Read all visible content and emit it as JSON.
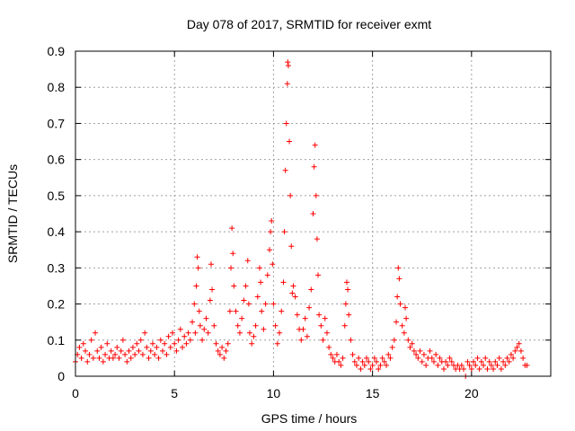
{
  "chart_data": {
    "type": "scatter",
    "title": "Day 078 of 2017, SRMTID for receiver exmt",
    "xlabel": "GPS time / hours",
    "ylabel": "SRMTID / TECUs",
    "xlim": [
      0,
      24
    ],
    "ylim": [
      0,
      0.9
    ],
    "xticks": [
      0,
      5,
      10,
      15,
      20
    ],
    "xtick_labels": [
      "0",
      "5",
      "10",
      "15",
      "20"
    ],
    "yticks": [
      0,
      0.1,
      0.2,
      0.3,
      0.4,
      0.5,
      0.6,
      0.7,
      0.8,
      0.9
    ],
    "ytick_labels": [
      "0",
      "0.1",
      "0.2",
      "0.3",
      "0.4",
      "0.5",
      "0.6",
      "0.7",
      "0.8",
      "0.9"
    ],
    "grid": true,
    "marker": "+",
    "series_color": "#ff0000",
    "series": [
      {
        "name": "SRMTID",
        "points": [
          [
            0.0,
            0.04
          ],
          [
            0.1,
            0.06
          ],
          [
            0.2,
            0.08
          ],
          [
            0.3,
            0.05
          ],
          [
            0.4,
            0.09
          ],
          [
            0.5,
            0.07
          ],
          [
            0.6,
            0.04
          ],
          [
            0.7,
            0.06
          ],
          [
            0.8,
            0.1
          ],
          [
            0.9,
            0.05
          ],
          [
            1.0,
            0.12
          ],
          [
            1.1,
            0.07
          ],
          [
            1.2,
            0.05
          ],
          [
            1.3,
            0.08
          ],
          [
            1.4,
            0.04
          ],
          [
            1.5,
            0.06
          ],
          [
            1.6,
            0.09
          ],
          [
            1.7,
            0.05
          ],
          [
            1.8,
            0.07
          ],
          [
            1.9,
            0.05
          ],
          [
            2.0,
            0.06
          ],
          [
            2.1,
            0.08
          ],
          [
            2.2,
            0.05
          ],
          [
            2.3,
            0.07
          ],
          [
            2.4,
            0.1
          ],
          [
            2.5,
            0.06
          ],
          [
            2.6,
            0.04
          ],
          [
            2.7,
            0.07
          ],
          [
            2.8,
            0.05
          ],
          [
            2.9,
            0.08
          ],
          [
            3.0,
            0.06
          ],
          [
            3.1,
            0.09
          ],
          [
            3.2,
            0.07
          ],
          [
            3.3,
            0.1
          ],
          [
            3.4,
            0.06
          ],
          [
            3.5,
            0.12
          ],
          [
            3.6,
            0.08
          ],
          [
            3.7,
            0.05
          ],
          [
            3.8,
            0.07
          ],
          [
            3.9,
            0.09
          ],
          [
            4.0,
            0.06
          ],
          [
            4.1,
            0.08
          ],
          [
            4.2,
            0.05
          ],
          [
            4.3,
            0.1
          ],
          [
            4.4,
            0.07
          ],
          [
            4.5,
            0.09
          ],
          [
            4.6,
            0.06
          ],
          [
            4.7,
            0.11
          ],
          [
            4.8,
            0.08
          ],
          [
            4.9,
            0.12
          ],
          [
            5.0,
            0.09
          ],
          [
            5.1,
            0.07
          ],
          [
            5.2,
            0.1
          ],
          [
            5.3,
            0.13
          ],
          [
            5.4,
            0.08
          ],
          [
            5.5,
            0.11
          ],
          [
            5.6,
            0.09
          ],
          [
            5.7,
            0.12
          ],
          [
            5.8,
            0.1
          ],
          [
            5.9,
            0.15
          ],
          [
            6.0,
            0.2
          ],
          [
            6.05,
            0.12
          ],
          [
            6.1,
            0.25
          ],
          [
            6.15,
            0.33
          ],
          [
            6.2,
            0.3
          ],
          [
            6.25,
            0.18
          ],
          [
            6.3,
            0.14
          ],
          [
            6.4,
            0.1
          ],
          [
            6.5,
            0.13
          ],
          [
            6.6,
            0.16
          ],
          [
            6.7,
            0.12
          ],
          [
            6.8,
            0.21
          ],
          [
            6.85,
            0.31
          ],
          [
            6.9,
            0.24
          ],
          [
            7.0,
            0.14
          ],
          [
            7.1,
            0.09
          ],
          [
            7.2,
            0.07
          ],
          [
            7.3,
            0.06
          ],
          [
            7.4,
            0.08
          ],
          [
            7.5,
            0.05
          ],
          [
            7.6,
            0.07
          ],
          [
            7.7,
            0.09
          ],
          [
            7.8,
            0.18
          ],
          [
            7.85,
            0.3
          ],
          [
            7.9,
            0.41
          ],
          [
            7.95,
            0.34
          ],
          [
            8.0,
            0.25
          ],
          [
            8.1,
            0.18
          ],
          [
            8.2,
            0.14
          ],
          [
            8.3,
            0.12
          ],
          [
            8.4,
            0.16
          ],
          [
            8.5,
            0.21
          ],
          [
            8.6,
            0.25
          ],
          [
            8.7,
            0.32
          ],
          [
            8.75,
            0.2
          ],
          [
            8.8,
            0.12
          ],
          [
            8.9,
            0.09
          ],
          [
            9.0,
            0.11
          ],
          [
            9.1,
            0.14
          ],
          [
            9.2,
            0.22
          ],
          [
            9.3,
            0.3
          ],
          [
            9.35,
            0.26
          ],
          [
            9.4,
            0.18
          ],
          [
            9.5,
            0.13
          ],
          [
            9.6,
            0.2
          ],
          [
            9.7,
            0.28
          ],
          [
            9.8,
            0.35
          ],
          [
            9.85,
            0.4
          ],
          [
            9.9,
            0.43
          ],
          [
            9.95,
            0.31
          ],
          [
            10.0,
            0.2
          ],
          [
            10.1,
            0.14
          ],
          [
            10.2,
            0.09
          ],
          [
            10.3,
            0.12
          ],
          [
            10.4,
            0.18
          ],
          [
            10.5,
            0.26
          ],
          [
            10.55,
            0.4
          ],
          [
            10.6,
            0.57
          ],
          [
            10.65,
            0.7
          ],
          [
            10.7,
            0.81
          ],
          [
            10.72,
            0.87
          ],
          [
            10.75,
            0.86
          ],
          [
            10.8,
            0.65
          ],
          [
            10.85,
            0.5
          ],
          [
            10.9,
            0.36
          ],
          [
            10.95,
            0.23
          ],
          [
            11.0,
            0.25
          ],
          [
            11.1,
            0.22
          ],
          [
            11.2,
            0.17
          ],
          [
            11.3,
            0.13
          ],
          [
            11.4,
            0.1
          ],
          [
            11.5,
            0.13
          ],
          [
            11.6,
            0.16
          ],
          [
            11.7,
            0.11
          ],
          [
            11.8,
            0.19
          ],
          [
            11.9,
            0.24
          ],
          [
            12.0,
            0.45
          ],
          [
            12.05,
            0.58
          ],
          [
            12.1,
            0.64
          ],
          [
            12.15,
            0.5
          ],
          [
            12.2,
            0.38
          ],
          [
            12.25,
            0.28
          ],
          [
            12.3,
            0.17
          ],
          [
            12.4,
            0.14
          ],
          [
            12.5,
            0.1
          ],
          [
            12.6,
            0.16
          ],
          [
            12.7,
            0.12
          ],
          [
            12.8,
            0.08
          ],
          [
            12.9,
            0.06
          ],
          [
            13.0,
            0.05
          ],
          [
            13.1,
            0.04
          ],
          [
            13.2,
            0.06
          ],
          [
            13.3,
            0.04
          ],
          [
            13.4,
            0.03
          ],
          [
            13.5,
            0.05
          ],
          [
            13.6,
            0.14
          ],
          [
            13.65,
            0.2
          ],
          [
            13.7,
            0.26
          ],
          [
            13.75,
            0.24
          ],
          [
            13.8,
            0.17
          ],
          [
            13.9,
            0.1
          ],
          [
            14.0,
            0.06
          ],
          [
            14.1,
            0.04
          ],
          [
            14.2,
            0.03
          ],
          [
            14.3,
            0.05
          ],
          [
            14.4,
            0.02
          ],
          [
            14.5,
            0.04
          ],
          [
            14.6,
            0.03
          ],
          [
            14.7,
            0.05
          ],
          [
            14.8,
            0.04
          ],
          [
            14.9,
            0.02
          ],
          [
            15.0,
            0.03
          ],
          [
            15.1,
            0.05
          ],
          [
            15.2,
            0.04
          ],
          [
            15.3,
            0.02
          ],
          [
            15.4,
            0.03
          ],
          [
            15.5,
            0.05
          ],
          [
            15.6,
            0.04
          ],
          [
            15.7,
            0.03
          ],
          [
            15.8,
            0.06
          ],
          [
            15.9,
            0.05
          ],
          [
            16.0,
            0.08
          ],
          [
            16.1,
            0.1
          ],
          [
            16.2,
            0.15
          ],
          [
            16.25,
            0.22
          ],
          [
            16.3,
            0.3
          ],
          [
            16.35,
            0.27
          ],
          [
            16.4,
            0.2
          ],
          [
            16.5,
            0.14
          ],
          [
            16.6,
            0.12
          ],
          [
            16.65,
            0.19
          ],
          [
            16.7,
            0.16
          ],
          [
            16.8,
            0.1
          ],
          [
            16.9,
            0.08
          ],
          [
            17.0,
            0.09
          ],
          [
            17.1,
            0.07
          ],
          [
            17.2,
            0.06
          ],
          [
            17.3,
            0.05
          ],
          [
            17.4,
            0.07
          ],
          [
            17.5,
            0.04
          ],
          [
            17.6,
            0.06
          ],
          [
            17.7,
            0.03
          ],
          [
            17.8,
            0.05
          ],
          [
            17.9,
            0.07
          ],
          [
            18.0,
            0.05
          ],
          [
            18.1,
            0.04
          ],
          [
            18.2,
            0.06
          ],
          [
            18.3,
            0.03
          ],
          [
            18.4,
            0.05
          ],
          [
            18.5,
            0.04
          ],
          [
            18.6,
            0.02
          ],
          [
            18.7,
            0.04
          ],
          [
            18.8,
            0.03
          ],
          [
            18.9,
            0.05
          ],
          [
            19.0,
            0.04
          ],
          [
            19.1,
            0.03
          ],
          [
            19.2,
            0.02
          ],
          [
            19.3,
            0.03
          ],
          [
            19.4,
            0.02
          ],
          [
            19.5,
            0.03
          ],
          [
            19.6,
            0.02
          ],
          [
            19.7,
            0.0
          ],
          [
            19.8,
            0.04
          ],
          [
            19.9,
            0.03
          ],
          [
            20.0,
            0.02
          ],
          [
            20.1,
            0.04
          ],
          [
            20.2,
            0.03
          ],
          [
            20.3,
            0.05
          ],
          [
            20.4,
            0.02
          ],
          [
            20.5,
            0.04
          ],
          [
            20.6,
            0.03
          ],
          [
            20.7,
            0.05
          ],
          [
            20.8,
            0.02
          ],
          [
            20.9,
            0.04
          ],
          [
            21.0,
            0.03
          ],
          [
            21.1,
            0.02
          ],
          [
            21.2,
            0.04
          ],
          [
            21.3,
            0.03
          ],
          [
            21.4,
            0.05
          ],
          [
            21.5,
            0.02
          ],
          [
            21.6,
            0.04
          ],
          [
            21.7,
            0.03
          ],
          [
            21.8,
            0.05
          ],
          [
            21.9,
            0.04
          ],
          [
            22.0,
            0.06
          ],
          [
            22.1,
            0.05
          ],
          [
            22.2,
            0.07
          ],
          [
            22.3,
            0.08
          ],
          [
            22.4,
            0.09
          ],
          [
            22.5,
            0.07
          ],
          [
            22.6,
            0.05
          ],
          [
            22.7,
            0.03
          ],
          [
            22.8,
            0.03
          ]
        ]
      }
    ]
  }
}
